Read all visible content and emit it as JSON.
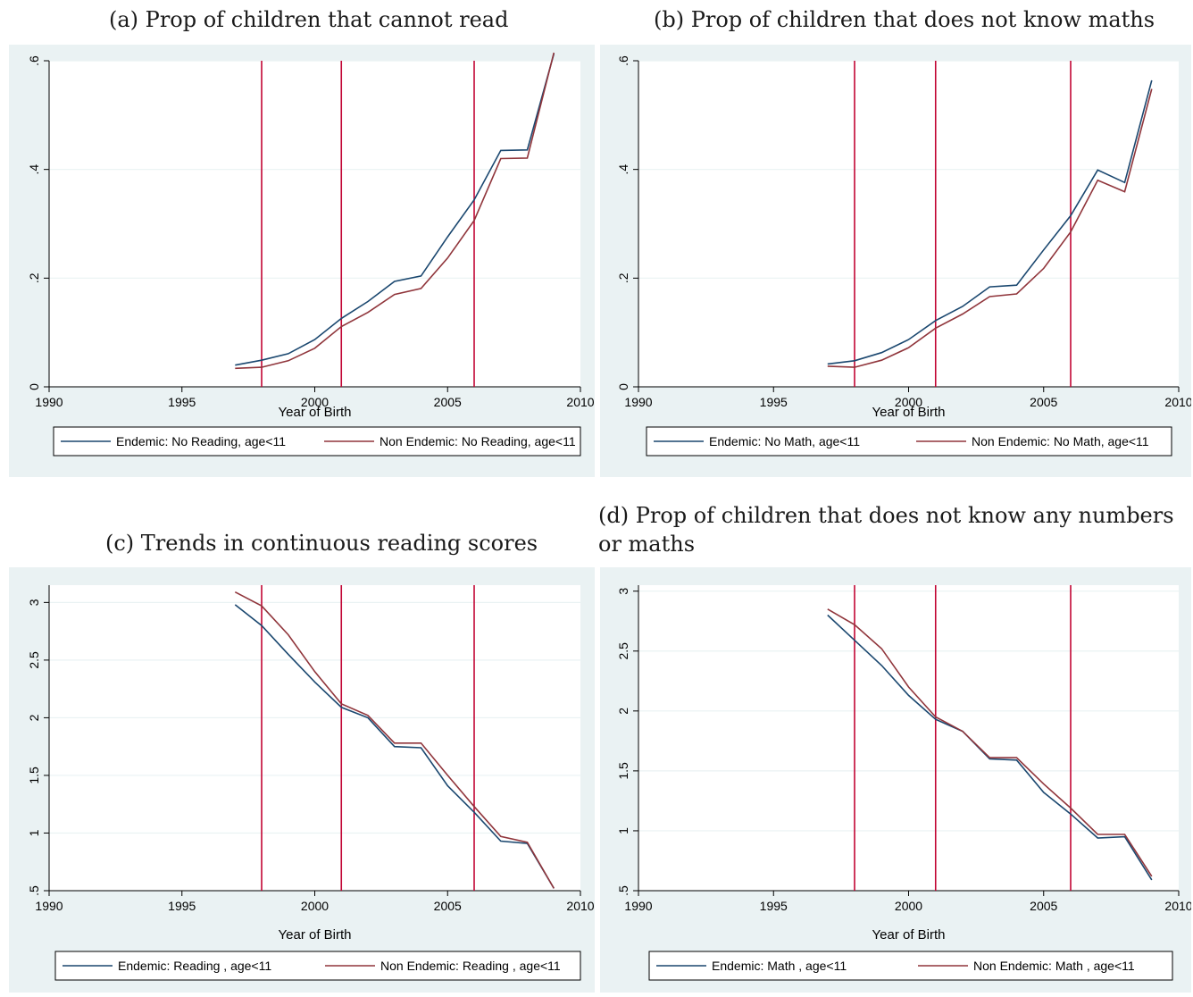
{
  "colors": {
    "endemic": "#1a476f",
    "non_endemic": "#90353b",
    "vline": "#c10534",
    "panel_bg": "#eaf2f3",
    "plot_bg": "#ffffff",
    "grid": "#eaf2f3"
  },
  "chart_data": [
    {
      "id": "a",
      "caption": "(a) Prop of children that cannot read",
      "type": "line",
      "xlabel": "Year of Birth",
      "ylabel": "",
      "xlim": [
        1990,
        2010
      ],
      "ylim": [
        0,
        0.6
      ],
      "xticks": [
        "1990",
        "1995",
        "2000",
        "2005",
        "2010"
      ],
      "yticks": [
        "0",
        ".2",
        ".4",
        ".6"
      ],
      "grid": true,
      "legend_position": "bottom",
      "vlines": [
        1998,
        2001,
        2006
      ],
      "x": [
        1997,
        1998,
        1999,
        2000,
        2001,
        2002,
        2003,
        2004,
        2005,
        2006,
        2007,
        2008,
        2009
      ],
      "series": [
        {
          "name": "Endemic: No Reading, age<11",
          "values": [
            0.04,
            0.049,
            0.061,
            0.087,
            0.126,
            0.157,
            0.194,
            0.204,
            0.276,
            0.344,
            0.435,
            0.436,
            0.613
          ]
        },
        {
          "name": "Non Endemic: No Reading, age<11",
          "values": [
            0.034,
            0.036,
            0.048,
            0.071,
            0.111,
            0.137,
            0.17,
            0.181,
            0.237,
            0.306,
            0.42,
            0.421,
            0.615
          ]
        }
      ]
    },
    {
      "id": "b",
      "caption": "(b) Prop of children that does not know maths",
      "type": "line",
      "xlabel": "Year of Birth",
      "ylabel": "",
      "xlim": [
        1990,
        2010
      ],
      "ylim": [
        0,
        0.6
      ],
      "xticks": [
        "1990",
        "1995",
        "2000",
        "2005",
        "2010"
      ],
      "yticks": [
        "0",
        ".2",
        ".4",
        ".6"
      ],
      "grid": true,
      "legend_position": "bottom",
      "vlines": [
        1998,
        2001,
        2006
      ],
      "x": [
        1997,
        1998,
        1999,
        2000,
        2001,
        2002,
        2003,
        2004,
        2005,
        2006,
        2007,
        2008,
        2009
      ],
      "series": [
        {
          "name": "Endemic: No Math, age<11",
          "values": [
            0.042,
            0.048,
            0.063,
            0.087,
            0.122,
            0.148,
            0.184,
            0.187,
            0.252,
            0.315,
            0.399,
            0.376,
            0.564
          ]
        },
        {
          "name": "Non Endemic: No Math, age<11",
          "values": [
            0.038,
            0.036,
            0.049,
            0.072,
            0.108,
            0.134,
            0.166,
            0.171,
            0.218,
            0.285,
            0.38,
            0.359,
            0.548
          ]
        }
      ]
    },
    {
      "id": "c",
      "caption": "(c) Trends in continuous reading scores",
      "type": "line",
      "xlabel": "Year of Birth",
      "ylabel": "",
      "xlim": [
        1990,
        2010
      ],
      "ylim": [
        0.5,
        3.15
      ],
      "xticks": [
        "1990",
        "1995",
        "2000",
        "2005",
        "2010"
      ],
      "yticks": [
        ".5",
        "1",
        "1.5",
        "2",
        "2.5",
        "3"
      ],
      "grid": true,
      "legend_position": "bottom",
      "vlines": [
        1998,
        2001,
        2006
      ],
      "x": [
        1997,
        1998,
        1999,
        2000,
        2001,
        2002,
        2003,
        2004,
        2005,
        2006,
        2007,
        2008,
        2009
      ],
      "series": [
        {
          "name": "Endemic: Reading , age<11",
          "values": [
            2.98,
            2.8,
            2.55,
            2.31,
            2.09,
            2.0,
            1.75,
            1.74,
            1.41,
            1.18,
            0.93,
            0.91,
            0.52
          ]
        },
        {
          "name": "Non Endemic: Reading , age<11",
          "values": [
            3.09,
            2.97,
            2.72,
            2.4,
            2.12,
            2.02,
            1.78,
            1.78,
            1.5,
            1.23,
            0.97,
            0.92,
            0.52
          ]
        }
      ]
    },
    {
      "id": "d",
      "caption": "(d) Prop of children that does not know any numbers or maths",
      "type": "line",
      "xlabel": "Year of Birth",
      "ylabel": "",
      "xlim": [
        1990,
        2010
      ],
      "ylim": [
        0.5,
        3.05
      ],
      "xticks": [
        "1990",
        "1995",
        "2000",
        "2005",
        "2010"
      ],
      "yticks": [
        ".5",
        "1",
        "1.5",
        "2",
        "2.5",
        "3"
      ],
      "grid": true,
      "legend_position": "bottom",
      "vlines": [
        1998,
        2001,
        2006
      ],
      "x": [
        1997,
        1998,
        1999,
        2000,
        2001,
        2002,
        2003,
        2004,
        2005,
        2006,
        2007,
        2008,
        2009
      ],
      "series": [
        {
          "name": "Endemic: Math , age<11",
          "values": [
            2.8,
            2.59,
            2.38,
            2.13,
            1.93,
            1.83,
            1.6,
            1.59,
            1.32,
            1.14,
            0.94,
            0.95,
            0.59
          ]
        },
        {
          "name": "Non Endemic: Math , age<11",
          "values": [
            2.85,
            2.72,
            2.52,
            2.2,
            1.95,
            1.83,
            1.61,
            1.61,
            1.39,
            1.19,
            0.97,
            0.97,
            0.62
          ]
        }
      ]
    }
  ]
}
